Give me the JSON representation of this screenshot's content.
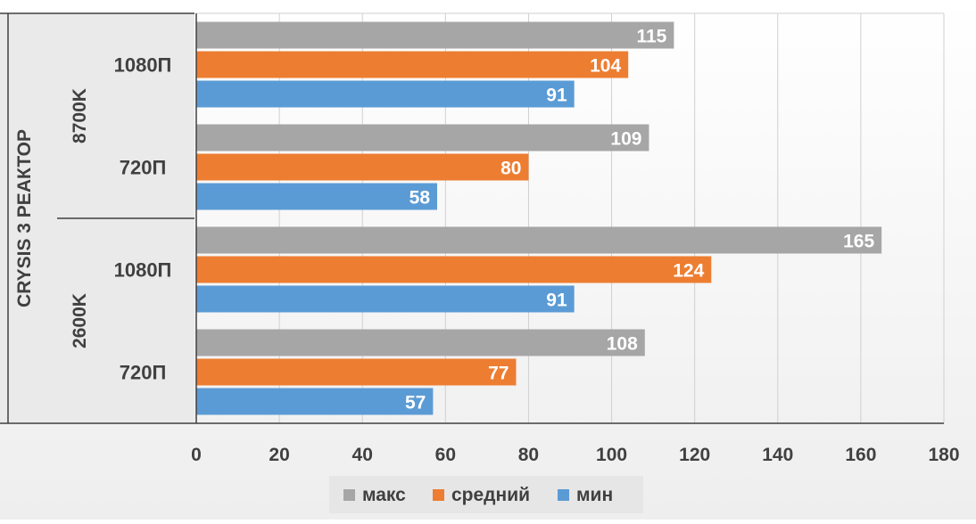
{
  "chart_data": {
    "type": "bar",
    "orientation": "horizontal",
    "title": "",
    "axis_label": "CRYSIS 3 РЕАКТОР",
    "groups": [
      {
        "label": "8700K",
        "categories": [
          "1080П",
          "720П"
        ]
      },
      {
        "label": "2600K",
        "categories": [
          "1080П",
          "720П"
        ]
      }
    ],
    "series": [
      {
        "name": "макс",
        "color": "#a6a6a6",
        "values": [
          115,
          109,
          165,
          108
        ]
      },
      {
        "name": "средний",
        "color": "#ed7d31",
        "values": [
          104,
          80,
          124,
          77
        ]
      },
      {
        "name": "мин",
        "color": "#5b9bd5",
        "values": [
          91,
          58,
          91,
          57
        ]
      }
    ],
    "xlim": [
      0,
      180
    ],
    "xticks": [
      0,
      20,
      40,
      60,
      80,
      100,
      120,
      140,
      160,
      180
    ],
    "grid": true,
    "legend_position": "bottom",
    "data_labels": true
  }
}
